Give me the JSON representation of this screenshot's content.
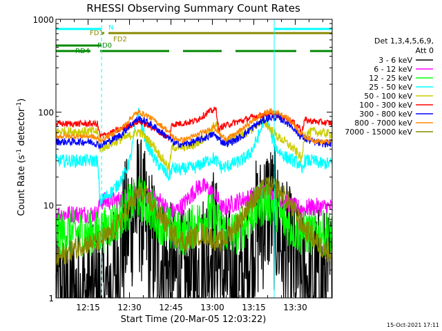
{
  "chart_data": {
    "type": "line",
    "title": "RHESSI Observing Summary Count Rates",
    "ylabel_parts": [
      "Count Rate (s",
      "-1",
      " detector",
      "-1",
      ")"
    ],
    "xlabel": "Start Time (20-Mar-05 12:03:22)",
    "footer": "15-Oct-2021 17:11",
    "x_unit": "minutes after 12:03:22",
    "xlim": [
      0,
      100
    ],
    "ylim": [
      1,
      1000
    ],
    "yscale": "log",
    "grid": false,
    "x_ticks": [
      {
        "label": "12:15",
        "value": 11.63
      },
      {
        "label": "12:30",
        "value": 26.63
      },
      {
        "label": "12:45",
        "value": 41.63
      },
      {
        "label": "13:00",
        "value": 56.63
      },
      {
        "label": "13:15",
        "value": 71.63
      },
      {
        "label": "13:30",
        "value": 86.63
      }
    ],
    "y_ticks": [
      {
        "label": "1",
        "value": 1
      },
      {
        "label": "10",
        "value": 10
      },
      {
        "label": "100",
        "value": 100
      },
      {
        "label": "1000",
        "value": 1000
      }
    ],
    "legend_header": [
      "Det 1,3,4,5,6,9,",
      "Att 0"
    ],
    "legend_position": "right",
    "series": [
      {
        "name": "3 - 6 keV",
        "color": "#000000",
        "noise": 0.8,
        "x": [
          0,
          7,
          13,
          16,
          20,
          22,
          25,
          30,
          33,
          37,
          41,
          45,
          50,
          55,
          57,
          60,
          66,
          68,
          70,
          72,
          74,
          77,
          80,
          82,
          85,
          89,
          91,
          95,
          100
        ],
        "y": [
          1,
          1,
          1,
          1,
          1.2,
          2,
          5,
          11,
          5,
          3,
          1.8,
          1.5,
          1.5,
          3,
          4.5,
          1.8,
          1.3,
          1.3,
          3,
          5,
          6,
          10,
          6,
          3.5,
          2.5,
          1.6,
          1.6,
          1.6,
          1.6
        ]
      },
      {
        "name": "6 - 12 keV",
        "color": "#ff00ff",
        "noise": 0.1,
        "x": [
          0,
          15,
          16,
          20,
          24,
          26,
          30,
          33,
          38,
          41,
          43,
          46,
          49,
          52,
          55,
          57,
          59,
          60,
          63,
          66,
          70,
          72,
          74,
          76,
          78,
          82,
          86,
          90,
          92,
          95,
          100
        ],
        "y": [
          8,
          8,
          11,
          11,
          11.5,
          12,
          13,
          12,
          11,
          8.5,
          8.5,
          10,
          13,
          16,
          15,
          13,
          11,
          9,
          10,
          11,
          12,
          13,
          14,
          13.5,
          13,
          11,
          9.5,
          9,
          9.5,
          9.5,
          9.5
        ]
      },
      {
        "name": "12 - 25 keV",
        "color": "#00ff00",
        "noise": 0.25,
        "x": [
          0,
          15,
          18,
          21,
          24,
          27,
          30,
          33,
          36,
          38,
          41,
          44,
          47,
          50,
          53,
          56,
          59,
          62,
          65,
          68,
          71,
          74,
          77,
          80,
          82,
          85,
          88,
          91,
          95,
          100
        ],
        "y": [
          5,
          5,
          5.5,
          6.5,
          8,
          10,
          12,
          10,
          8,
          6.5,
          5.5,
          5,
          5,
          6,
          7,
          8,
          6,
          5,
          5,
          6,
          8,
          10,
          11,
          9,
          7,
          6,
          5,
          5,
          5,
          5
        ]
      },
      {
        "name": "25 - 50 keV",
        "color": "#00ffff",
        "noise": 0.07,
        "x": [
          0,
          15,
          16,
          19,
          22,
          25,
          27,
          28,
          29,
          30,
          31,
          33,
          36,
          40,
          41,
          42,
          45,
          48,
          50,
          53,
          55,
          57,
          59,
          60,
          63,
          67,
          70,
          72,
          74,
          75,
          76,
          77,
          78,
          80,
          83,
          86,
          88,
          89,
          90,
          93,
          96,
          100
        ],
        "y": [
          30,
          30,
          11,
          13,
          16,
          22,
          32,
          50,
          80,
          100,
          70,
          45,
          30,
          22,
          20,
          25,
          24,
          25,
          25,
          28,
          30,
          32,
          28,
          25,
          27,
          30,
          35,
          45,
          62,
          80,
          95,
          75,
          55,
          40,
          33,
          30,
          28,
          22,
          30,
          30,
          28,
          28
        ]
      },
      {
        "name": "50 - 100 keV",
        "color": "#cccc00",
        "noise": 0.05,
        "x": [
          0,
          7,
          15,
          16,
          20,
          25,
          28,
          30,
          32,
          35,
          38,
          41,
          42,
          46,
          50,
          53,
          55,
          57,
          58,
          59,
          60,
          64,
          67,
          70,
          72,
          74,
          76,
          78,
          80,
          83,
          86,
          88,
          89,
          90,
          93,
          96,
          100
        ],
        "y": [
          62,
          62,
          62,
          40,
          46,
          53,
          58,
          62,
          55,
          45,
          33,
          25,
          42,
          42,
          44,
          50,
          60,
          70,
          74,
          62,
          48,
          52,
          56,
          62,
          70,
          80,
          75,
          65,
          55,
          48,
          40,
          35,
          30,
          58,
          62,
          60,
          58
        ]
      },
      {
        "name": "100 - 300 keV",
        "color": "#ff0000",
        "noise": 0.035,
        "x": [
          0,
          7,
          15,
          16,
          20,
          25,
          28,
          30,
          32,
          35,
          38,
          41,
          42,
          46,
          50,
          53,
          55,
          57,
          58,
          59,
          60,
          64,
          68,
          72,
          76,
          80,
          84,
          88,
          89,
          90,
          93,
          96,
          100
        ],
        "y": [
          75,
          75,
          75,
          55,
          60,
          68,
          75,
          80,
          75,
          68,
          60,
          52,
          74,
          76,
          80,
          90,
          100,
          105,
          107,
          62,
          70,
          76,
          82,
          90,
          95,
          92,
          85,
          70,
          60,
          82,
          80,
          78,
          76
        ]
      },
      {
        "name": "300 - 800 keV",
        "color": "#0000ff",
        "noise": 0.04,
        "x": [
          0,
          7,
          13,
          16,
          20,
          24,
          26,
          28,
          30,
          33,
          36,
          40,
          43,
          46,
          50,
          54,
          57,
          58,
          60,
          62,
          65,
          68,
          71,
          74,
          77,
          80,
          83,
          86,
          88,
          90,
          93,
          96,
          100
        ],
        "y": [
          48,
          48,
          48,
          44,
          50,
          58,
          68,
          78,
          85,
          78,
          68,
          55,
          46,
          45,
          48,
          53,
          58,
          55,
          48,
          46,
          50,
          57,
          68,
          78,
          87,
          88,
          80,
          68,
          57,
          52,
          48,
          46,
          46
        ]
      },
      {
        "name": "800 - 7000 keV",
        "color": "#ff8800",
        "noise": 0.03,
        "x": [
          0,
          7,
          13,
          16,
          20,
          24,
          26,
          28,
          30,
          33,
          36,
          40,
          43,
          46,
          50,
          54,
          57,
          58,
          60,
          62,
          65,
          68,
          71,
          74,
          77,
          80,
          83,
          86,
          88,
          90,
          93,
          96,
          100
        ],
        "y": [
          55,
          55,
          55,
          50,
          57,
          68,
          80,
          92,
          100,
          92,
          80,
          65,
          52,
          50,
          55,
          62,
          70,
          65,
          55,
          52,
          58,
          68,
          80,
          92,
          102,
          100,
          90,
          75,
          62,
          55,
          50,
          48,
          48
        ]
      },
      {
        "name": "7000 - 15000 keV",
        "color": "#888800",
        "noise": 0.12,
        "x": [
          0,
          5,
          10,
          15,
          18,
          20,
          23,
          26,
          29,
          30,
          32,
          35,
          38,
          41,
          44,
          47,
          50,
          53,
          56,
          59,
          62,
          65,
          68,
          71,
          74,
          77,
          80,
          83,
          86,
          88,
          90,
          93,
          96,
          100
        ],
        "y": [
          2.6,
          3.2,
          3.8,
          4,
          4.5,
          5,
          6.5,
          9,
          12,
          14,
          13,
          10,
          7.5,
          5.5,
          4.5,
          4,
          4.5,
          5,
          4.5,
          4,
          4.5,
          6,
          8,
          11,
          14,
          16,
          15,
          12,
          9,
          7,
          5.5,
          4.5,
          3.5,
          3
        ]
      }
    ],
    "state_bars": [
      {
        "name": "N",
        "color": "#00ffff",
        "segments": [
          [
            0,
            16.5
          ],
          [
            79,
            100
          ]
        ]
      },
      {
        "name": "FD1",
        "color": "#888800",
        "segments": [
          [
            16.5,
            17.5
          ],
          [
            19,
            100
          ]
        ]
      },
      {
        "name": "FD2",
        "color": "#888800",
        "segments": []
      },
      {
        "name": "RD0",
        "color": "#008800",
        "segments": [
          [
            0,
            16.5
          ]
        ]
      },
      {
        "name": "RD4",
        "color": "#008800",
        "segments": [
          [
            0,
            12.5
          ],
          [
            16,
            41
          ],
          [
            46,
            60
          ],
          [
            65,
            87
          ],
          [
            92,
            100
          ]
        ]
      }
    ],
    "markers": [
      {
        "kind": "solid",
        "color": "#00ffff",
        "x": [
          0,
          79
        ]
      },
      {
        "kind": "dashed",
        "color": "#00ffff",
        "x": [
          16.5,
          100
        ]
      }
    ]
  }
}
